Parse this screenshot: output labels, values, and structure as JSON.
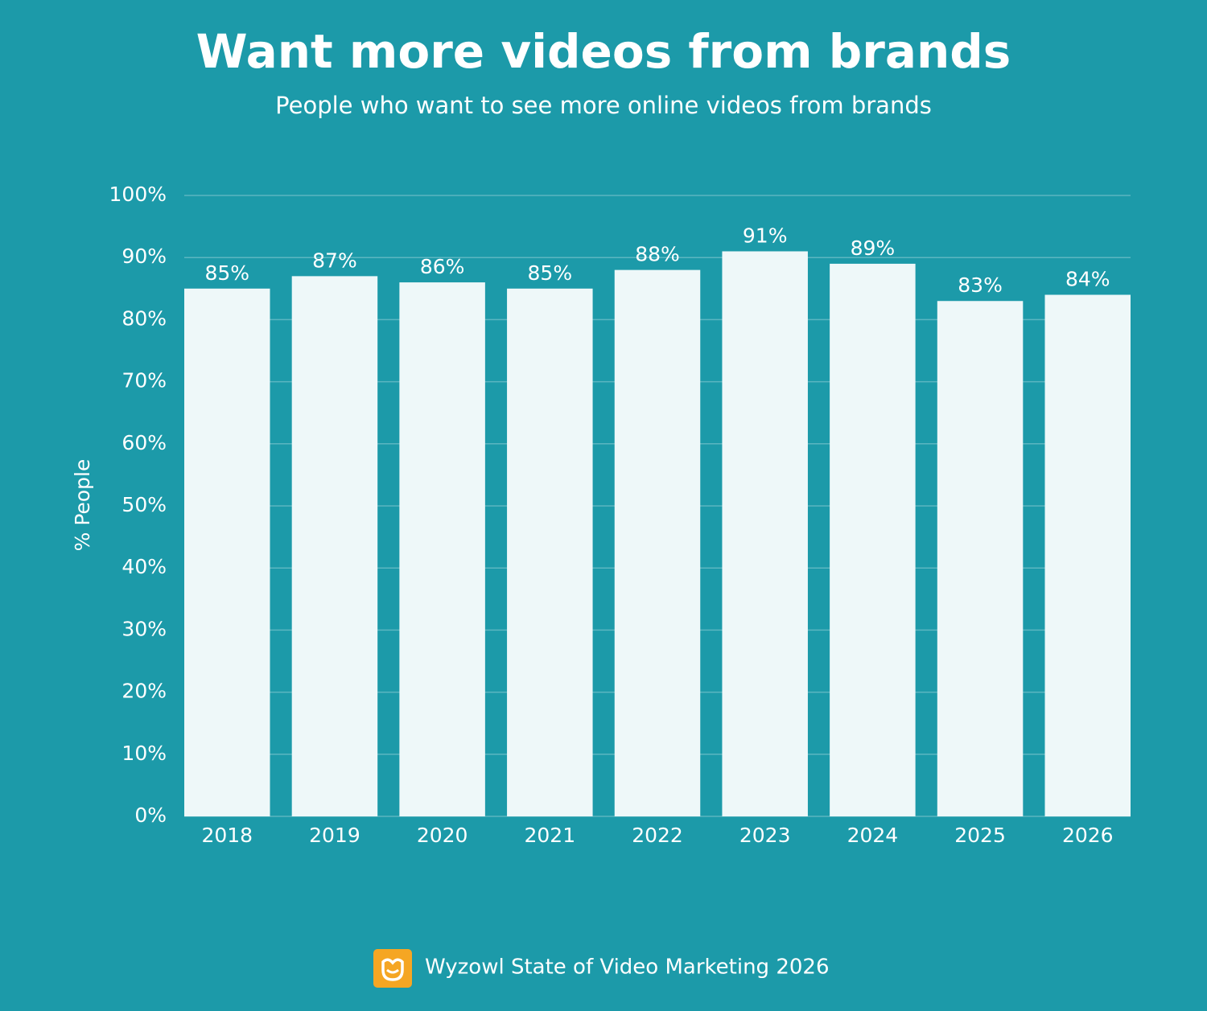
{
  "chart_data": {
    "type": "bar",
    "title": "Want more videos from brands",
    "subtitle": "People who want to see more online videos from brands",
    "ylabel": "% People",
    "categories": [
      "2018",
      "2019",
      "2020",
      "2021",
      "2022",
      "2023",
      "2024",
      "2025",
      "2026"
    ],
    "values": [
      85,
      87,
      86,
      85,
      88,
      91,
      89,
      83,
      84
    ],
    "value_labels": [
      "85%",
      "87%",
      "86%",
      "85%",
      "88%",
      "91%",
      "89%",
      "83%",
      "84%"
    ],
    "color": "#eef8f9",
    "ylim": [
      0,
      100
    ],
    "yticks": [
      {
        "value": 0,
        "label": "0%"
      },
      {
        "value": 10,
        "label": "10%"
      },
      {
        "value": 20,
        "label": "20%"
      },
      {
        "value": 30,
        "label": "30%"
      },
      {
        "value": 40,
        "label": "40%"
      },
      {
        "value": 50,
        "label": "50%"
      },
      {
        "value": 60,
        "label": "60%"
      },
      {
        "value": 70,
        "label": "70%"
      },
      {
        "value": 80,
        "label": "80%"
      },
      {
        "value": 90,
        "label": "90%"
      },
      {
        "value": 100,
        "label": "100%"
      }
    ],
    "grid": true,
    "source": "Wyzowl State of Video Marketing 2026"
  }
}
